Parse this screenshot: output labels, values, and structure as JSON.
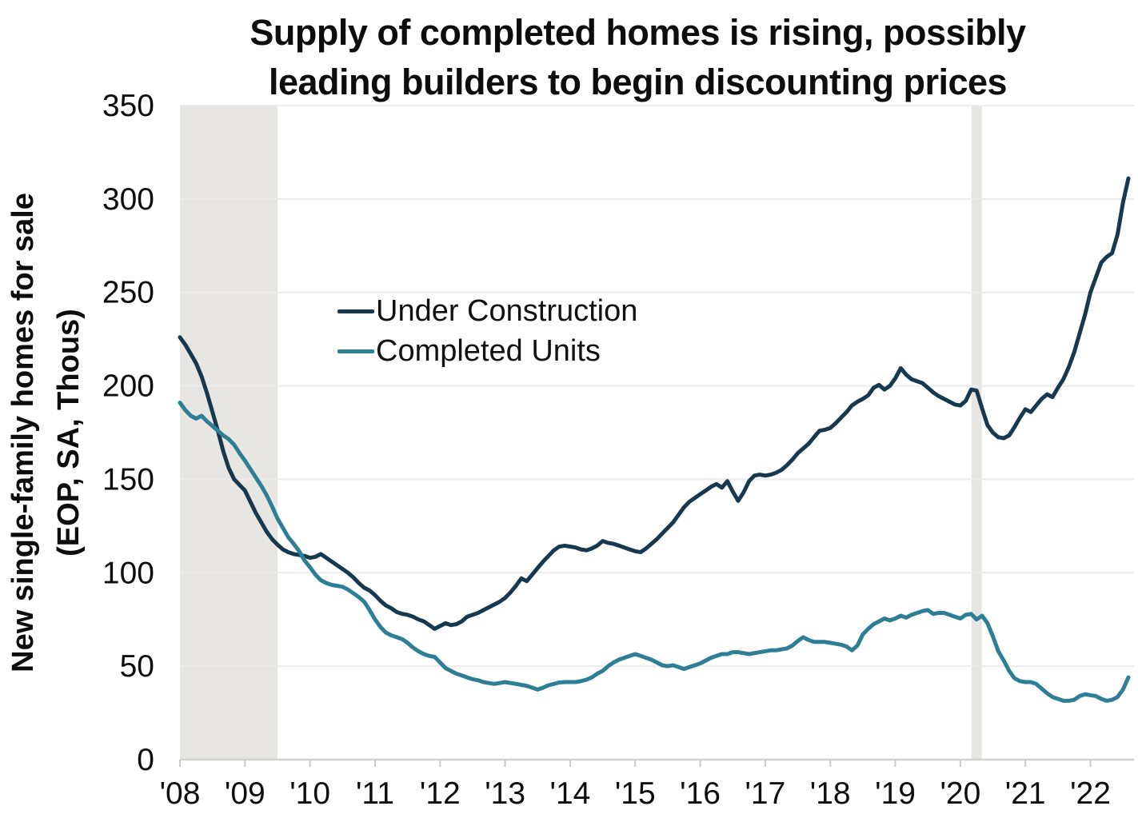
{
  "chart_data": {
    "type": "line",
    "title_line1": "Supply of completed homes is rising, possibly",
    "title_line2": "leading builders to begin discounting prices",
    "ylabel_line1": "New single-family homes for sale",
    "ylabel_line2": "(EOP, SA, Thous)",
    "xlabel": "",
    "x_tick_labels": [
      "'08",
      "'09",
      "'10",
      "'11",
      "'12",
      "'13",
      "'14",
      "'15",
      "'16",
      "'17",
      "'18",
      "'19",
      "'20",
      "'21",
      "'22"
    ],
    "x_tick_years": [
      2008,
      2009,
      2010,
      2011,
      2012,
      2013,
      2014,
      2015,
      2016,
      2017,
      2018,
      2019,
      2020,
      2021,
      2022
    ],
    "y_ticks": [
      0,
      50,
      100,
      150,
      200,
      250,
      300,
      350
    ],
    "xlim": [
      2008.0,
      2022.67
    ],
    "ylim": [
      0,
      350
    ],
    "grid": "horizontal",
    "grid_color": "#ececec",
    "axis_line_color": "#d2d2d2",
    "tick_mark_color": "#c9c9c9",
    "band_color": "#e8e6e3",
    "recession_bands": [
      {
        "start": 2008.0,
        "end": 2009.5
      },
      {
        "start": 2020.17,
        "end": 2020.33
      }
    ],
    "legend": {
      "position": "upper-left-of-center",
      "entries": [
        {
          "label": "Under Construction",
          "color": "#16394F"
        },
        {
          "label": "Completed Units",
          "color": "#2E7E96"
        }
      ]
    },
    "x_start": 2008.0,
    "x_step_months": 1,
    "x_end_label": "Aug 2022",
    "series": [
      {
        "name": "Under Construction",
        "color": "#16394F",
        "values": [
          226,
          222,
          217,
          212,
          205,
          196,
          186,
          176,
          165,
          156,
          150,
          147,
          144,
          138,
          132,
          127,
          122,
          118,
          115,
          112.5,
          111,
          110,
          109.5,
          109,
          108,
          108.5,
          110,
          108,
          106,
          104,
          102,
          100,
          97.5,
          94.5,
          92,
          90.5,
          88,
          85,
          82.5,
          81,
          79,
          78,
          77.5,
          76.5,
          75,
          74,
          72,
          70,
          71.5,
          73,
          72,
          72.5,
          74,
          76.5,
          77.5,
          78.5,
          80,
          81.5,
          83,
          84.5,
          86.5,
          89.5,
          93,
          97,
          95.5,
          99,
          102.5,
          106,
          109,
          112,
          114,
          114.5,
          114,
          113.5,
          112.5,
          112,
          113,
          114.5,
          117,
          116,
          115.5,
          114.5,
          113.5,
          112.5,
          111.5,
          111,
          113,
          115.5,
          118,
          121,
          124,
          127,
          131,
          135,
          138,
          140,
          142,
          144,
          146,
          147.5,
          145.5,
          149,
          143.5,
          138.5,
          143,
          149,
          152,
          152.5,
          152,
          152.5,
          153.5,
          155,
          157.5,
          160.5,
          164,
          166.5,
          169,
          172.5,
          176,
          176.5,
          177.5,
          180,
          183,
          186,
          189.5,
          191.5,
          193,
          195,
          199,
          200.5,
          198,
          200,
          204,
          209.5,
          206,
          203.5,
          202.5,
          201.5,
          199,
          196.5,
          194.5,
          193,
          191.5,
          190,
          189.5,
          192,
          198,
          197.5,
          188,
          179,
          175,
          172.5,
          172,
          173.5,
          178,
          183,
          187.5,
          186,
          189.5,
          193,
          195.5,
          194,
          199,
          203.5,
          210,
          218,
          228,
          238,
          250,
          258,
          266,
          269,
          271,
          281,
          298,
          311
        ]
      },
      {
        "name": "Completed Units",
        "color": "#2E7E96",
        "values": [
          191,
          187,
          184,
          182.5,
          184,
          181,
          178.5,
          176,
          173.5,
          171.5,
          168.5,
          164,
          160,
          155.5,
          151,
          146.5,
          141.5,
          135.5,
          129,
          124,
          119,
          115.5,
          111.5,
          106.5,
          103,
          99,
          96,
          94.5,
          93.5,
          93,
          92.5,
          91,
          89,
          87,
          84.5,
          80,
          75,
          71,
          68,
          66.5,
          65.5,
          64.5,
          62.5,
          60,
          58,
          56.5,
          55.5,
          55,
          52,
          49,
          47.5,
          46,
          45,
          44,
          43,
          42.5,
          41.5,
          41,
          40.5,
          41,
          41.5,
          41,
          40.5,
          40,
          39.5,
          38.5,
          37.5,
          38.5,
          39.8,
          40.5,
          41.3,
          41.5,
          41.5,
          41.5,
          42,
          42.8,
          44,
          46,
          47.5,
          50,
          52,
          53.5,
          54.5,
          55.5,
          56.5,
          55.5,
          54.5,
          53.5,
          52,
          50.5,
          50,
          50.5,
          49.5,
          48.5,
          49.5,
          50.5,
          51.5,
          53,
          54.5,
          55.5,
          56.5,
          56.5,
          57.5,
          57.5,
          57,
          56.5,
          57,
          57.5,
          58,
          58.5,
          58.5,
          59,
          59.5,
          61,
          63.5,
          65.5,
          64,
          63,
          63,
          63,
          62.5,
          62,
          61.5,
          60.5,
          58.5,
          61,
          67,
          70,
          72.5,
          74,
          75.5,
          74.5,
          75.5,
          77,
          76,
          77.5,
          78.5,
          79.5,
          80,
          78,
          78.5,
          78.5,
          77.5,
          76.5,
          75.5,
          77.5,
          78,
          75,
          77,
          73,
          66,
          58,
          53,
          47.5,
          43.5,
          42,
          41.5,
          41.5,
          40.5,
          38,
          35.5,
          33.5,
          32.5,
          31.5,
          31.5,
          32,
          34,
          35,
          34.5,
          34,
          32.5,
          31.5,
          32,
          33.5,
          37.5,
          44
        ]
      }
    ]
  }
}
